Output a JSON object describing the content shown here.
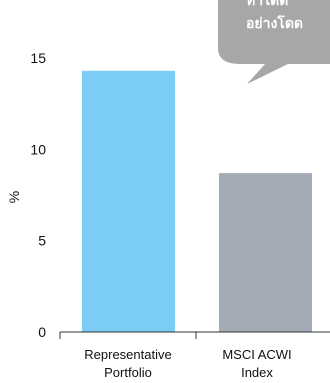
{
  "chart_data": {
    "type": "bar",
    "categories": [
      [
        "Representative",
        "Portfolio"
      ],
      [
        "MSCI ACWI",
        "Index"
      ]
    ],
    "values": [
      14.3,
      8.7
    ],
    "ylabel": "%",
    "ylim": [
      0,
      15
    ],
    "yticks": [
      "0",
      "5",
      "10",
      "15"
    ],
    "grid": false,
    "colors": [
      "#7ccdf4",
      "#a3acb6"
    ]
  },
  "callout": {
    "lines": [
      "ทำได้ดี",
      "อย่างโดด"
    ],
    "color": "#a7a7a7"
  }
}
